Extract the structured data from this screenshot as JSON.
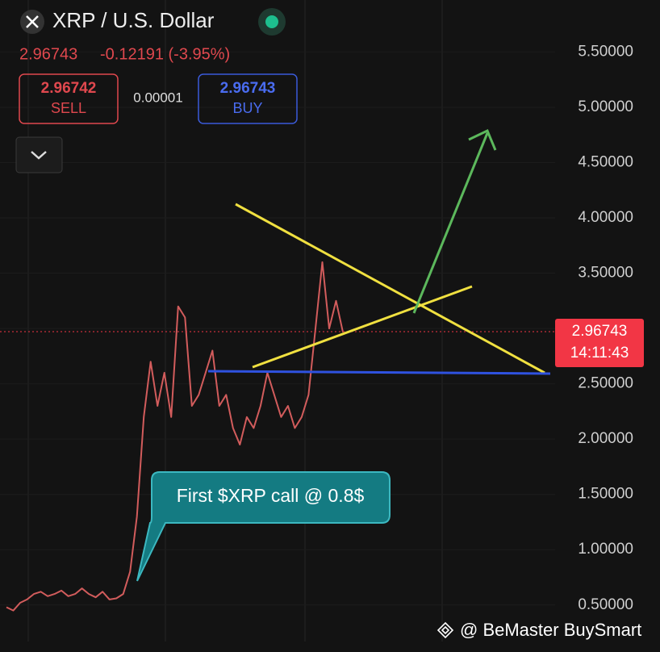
{
  "header": {
    "title": "XRP / U.S. Dollar",
    "last": "2.96743",
    "change": "-0.12191 (-3.95%)",
    "sell_price": "2.96742",
    "sell_label": "SELL",
    "spread": "0.00001",
    "buy_price": "2.96743",
    "buy_label": "BUY"
  },
  "price_tag": {
    "price": "2.96743",
    "countdown": "14:11:43"
  },
  "annotation": "First $XRP call @ 0.8$",
  "watermark": "@ BeMaster BuySmart",
  "chart_data": {
    "type": "line",
    "color": "#d25c5c",
    "categories": [
      null,
      null,
      null,
      null,
      null,
      null,
      null,
      null,
      null,
      null,
      null,
      null,
      null,
      null,
      null,
      null,
      null,
      null,
      null,
      null,
      null,
      null,
      null,
      null,
      null,
      null,
      null,
      null,
      null,
      null,
      null,
      null,
      null,
      null,
      null,
      null,
      null,
      null,
      null,
      null,
      null,
      null,
      null,
      null,
      null,
      null,
      null,
      null,
      null,
      null
    ],
    "values": [
      0.48,
      0.45,
      0.52,
      0.55,
      0.6,
      0.62,
      0.58,
      0.6,
      0.63,
      0.58,
      0.6,
      0.65,
      0.6,
      0.57,
      0.62,
      0.55,
      0.56,
      0.6,
      0.8,
      1.3,
      2.2,
      2.7,
      2.3,
      2.6,
      2.2,
      3.2,
      3.1,
      2.3,
      2.4,
      2.6,
      2.8,
      2.3,
      2.4,
      2.1,
      1.95,
      2.2,
      2.1,
      2.3,
      2.6,
      2.4,
      2.2,
      2.3,
      2.1,
      2.2,
      2.4,
      3.0,
      3.6,
      3.0,
      3.25,
      2.96743
    ],
    "ylim": [
      0.17,
      5.97
    ],
    "yticks": [
      {
        "value": 0.5,
        "label": "0.50000"
      },
      {
        "value": 1.0,
        "label": "1.00000"
      },
      {
        "value": 1.5,
        "label": "1.50000"
      },
      {
        "value": 2.0,
        "label": "2.00000"
      },
      {
        "value": 2.5,
        "label": "2.50000"
      },
      {
        "value": 3.0,
        "label": "3.00000"
      },
      {
        "value": 3.5,
        "label": "3.50000"
      },
      {
        "value": 4.0,
        "label": "4.00000"
      },
      {
        "value": 4.5,
        "label": "4.50000"
      },
      {
        "value": 5.0,
        "label": "5.00000"
      },
      {
        "value": 5.5,
        "label": "5.50000"
      }
    ],
    "grid": true
  }
}
